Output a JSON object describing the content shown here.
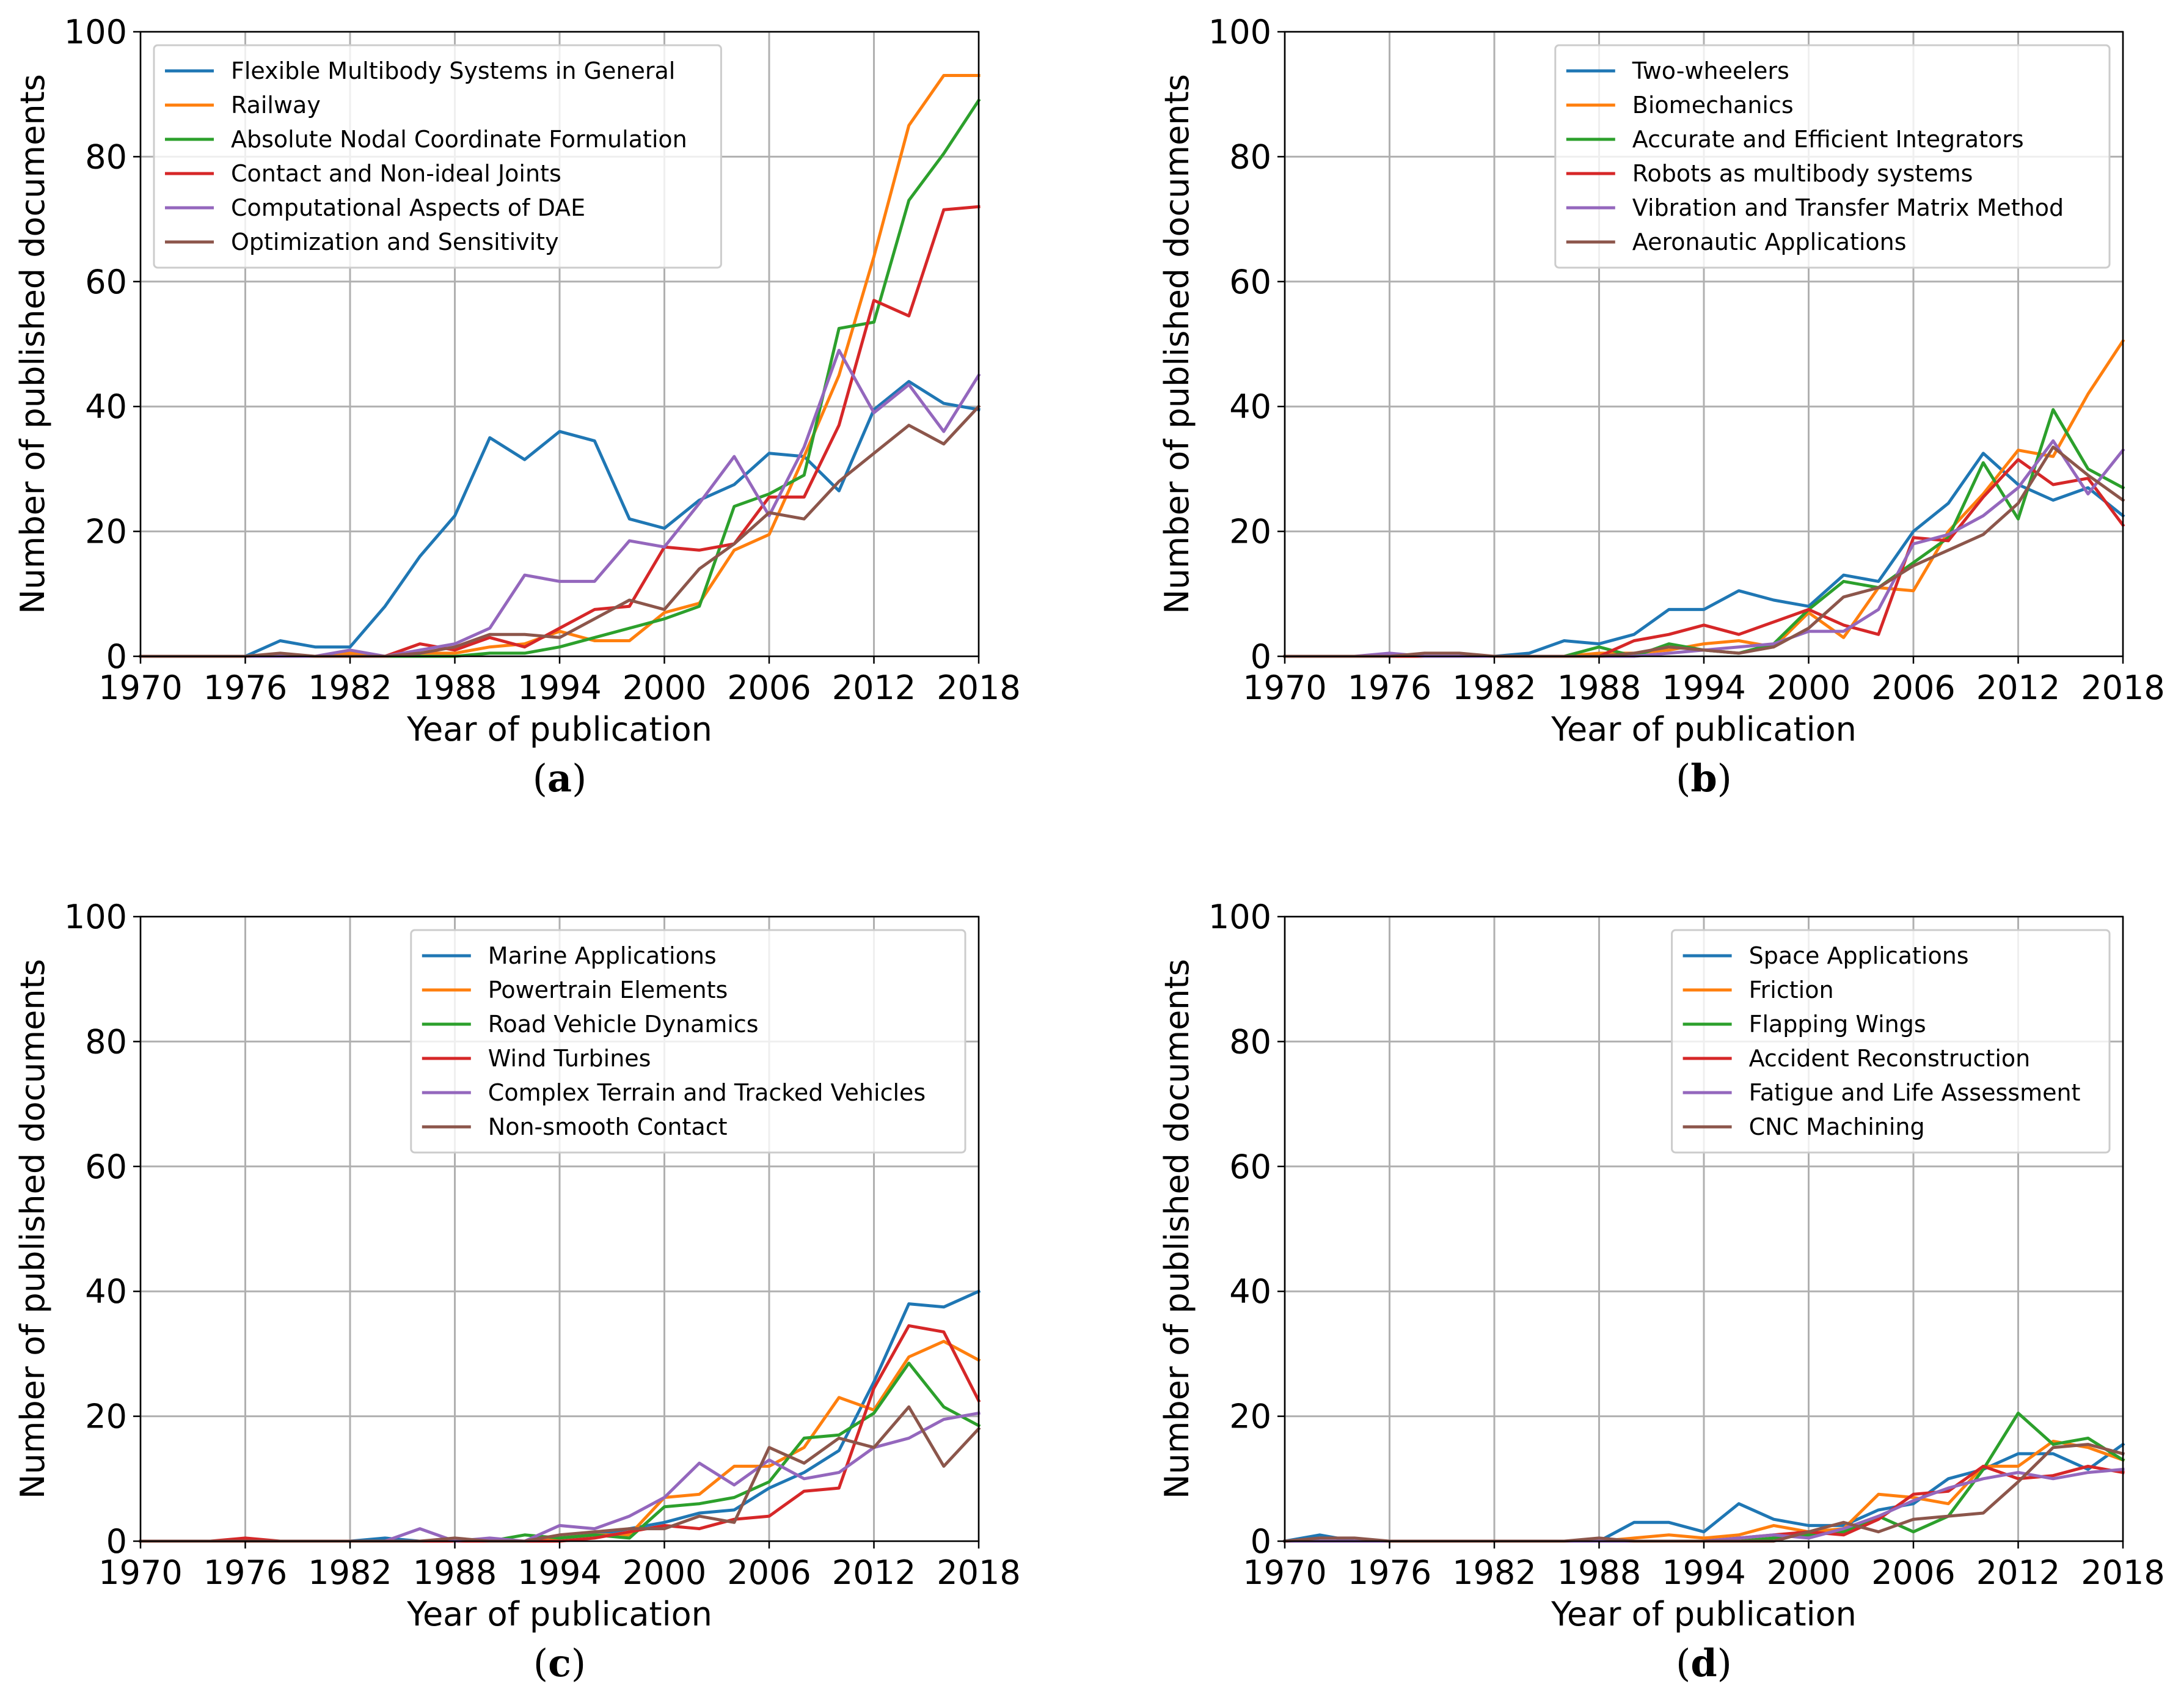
{
  "colors": {
    "c0": "#1f77b4",
    "c1": "#ff7f0e",
    "c2": "#2ca02c",
    "c3": "#d62728",
    "c4": "#9467bd",
    "c5": "#8c564b"
  },
  "chart_data": [
    {
      "type": "line",
      "caption": "(a)",
      "caption_letter": "a",
      "xlabel": "Year of publication",
      "ylabel": "Number of published documents",
      "xlim": [
        1970,
        2018
      ],
      "ylim": [
        0,
        100
      ],
      "xticks": [
        "1970",
        "1976",
        "1982",
        "1988",
        "1994",
        "2000",
        "2006",
        "2012",
        "2018"
      ],
      "yticks": [
        "0",
        "20",
        "40",
        "60",
        "80",
        "100"
      ],
      "grid": true,
      "legend_position": "top-left",
      "x": [
        1970,
        1972,
        1974,
        1976,
        1978,
        1980,
        1982,
        1984,
        1986,
        1988,
        1990,
        1992,
        1994,
        1996,
        1998,
        2000,
        2002,
        2004,
        2006,
        2008,
        2010,
        2012,
        2014,
        2016,
        2018
      ],
      "series": [
        {
          "name": "Flexible Multibody Systems in General",
          "color_key": "c0",
          "values": [
            0,
            0,
            0,
            0,
            2.5,
            1.5,
            1.5,
            8,
            16,
            22.5,
            35,
            31.5,
            36,
            34.5,
            22,
            20.5,
            25,
            27.5,
            32.5,
            32,
            26.5,
            39.5,
            44,
            40.5,
            39.5
          ]
        },
        {
          "name": "Railway",
          "color_key": "c1",
          "values": [
            0,
            0,
            0,
            0,
            0,
            0,
            0.5,
            0,
            0.5,
            0.5,
            1.5,
            2,
            4,
            2.5,
            2.5,
            7,
            8.5,
            17,
            19.5,
            32,
            45,
            64,
            85,
            93,
            93
          ]
        },
        {
          "name": "Absolute Nodal Coordinate Formulation",
          "color_key": "c2",
          "values": [
            0,
            0,
            0,
            0,
            0,
            0,
            0,
            0,
            0,
            0,
            0.5,
            0.5,
            1.5,
            3,
            4.5,
            6,
            8,
            24,
            26,
            29,
            52.5,
            53.5,
            73,
            80.5,
            89
          ]
        },
        {
          "name": "Contact and Non-ideal Joints",
          "color_key": "c3",
          "values": [
            0,
            0,
            0,
            0,
            0,
            0,
            0,
            0,
            2,
            1,
            3,
            1.5,
            4.5,
            7.5,
            8,
            17.5,
            17,
            18,
            25.5,
            25.5,
            37,
            57,
            54.5,
            71.5,
            72
          ]
        },
        {
          "name": "Computational Aspects of DAE",
          "color_key": "c4",
          "values": [
            0,
            0,
            0,
            0,
            0,
            0,
            1,
            0,
            1,
            2,
            4.5,
            13,
            12,
            12,
            18.5,
            17.5,
            24.5,
            32,
            22.5,
            33.5,
            49,
            39,
            43.5,
            36,
            45
          ]
        },
        {
          "name": "Optimization and Sensitivity",
          "color_key": "c5",
          "values": [
            0,
            0,
            0,
            0,
            0.5,
            0,
            0,
            0,
            0.5,
            1.5,
            3.5,
            3.5,
            3,
            6,
            9,
            7.5,
            14,
            18,
            23,
            22,
            28,
            32.5,
            37,
            34,
            40
          ]
        }
      ]
    },
    {
      "type": "line",
      "caption": "(b)",
      "caption_letter": "b",
      "xlabel": "Year of publication",
      "ylabel": "Number of published documents",
      "xlim": [
        1970,
        2018
      ],
      "ylim": [
        0,
        100
      ],
      "xticks": [
        "1970",
        "1976",
        "1982",
        "1988",
        "1994",
        "2000",
        "2006",
        "2012",
        "2018"
      ],
      "yticks": [
        "0",
        "20",
        "40",
        "60",
        "80",
        "100"
      ],
      "grid": true,
      "legend_position": "top-right",
      "x": [
        1970,
        1972,
        1974,
        1976,
        1978,
        1980,
        1982,
        1984,
        1986,
        1988,
        1990,
        1992,
        1994,
        1996,
        1998,
        2000,
        2002,
        2004,
        2006,
        2008,
        2010,
        2012,
        2014,
        2016,
        2018
      ],
      "series": [
        {
          "name": "Two-wheelers",
          "color_key": "c0",
          "values": [
            0,
            0,
            0,
            0,
            0,
            0,
            0,
            0.5,
            2.5,
            2,
            3.5,
            7.5,
            7.5,
            10.5,
            9,
            8,
            13,
            12,
            20,
            24.5,
            32.5,
            27.5,
            25,
            27,
            22.5
          ]
        },
        {
          "name": "Biomechanics",
          "color_key": "c1",
          "values": [
            0,
            0,
            0,
            0,
            0,
            0,
            0,
            0,
            0,
            0.5,
            0.5,
            1,
            2,
            2.5,
            1.5,
            7,
            3,
            11,
            10.5,
            20,
            26,
            33,
            32,
            42,
            50.5
          ]
        },
        {
          "name": "Accurate and Efficient Integrators",
          "color_key": "c2",
          "values": [
            0,
            0,
            0,
            0,
            0,
            0,
            0,
            0,
            0,
            1.5,
            0,
            2,
            1,
            0.5,
            2,
            7.5,
            12,
            11,
            15,
            19,
            31,
            22,
            39.5,
            30,
            27
          ]
        },
        {
          "name": "Robots as multibody systems",
          "color_key": "c3",
          "values": [
            0,
            0,
            0,
            0,
            0,
            0,
            0,
            0,
            0,
            0,
            2.5,
            3.5,
            5,
            3.5,
            5.5,
            7.5,
            5,
            3.5,
            19,
            18.5,
            25.5,
            31.5,
            27.5,
            28.5,
            21
          ]
        },
        {
          "name": "Vibration and Transfer Matrix Method",
          "color_key": "c4",
          "values": [
            0,
            0,
            0,
            0.5,
            0,
            0,
            0,
            0,
            0,
            0,
            0,
            0.5,
            1,
            1.5,
            2,
            4,
            4,
            7.5,
            18,
            19.5,
            22.5,
            27,
            34.5,
            26,
            33
          ]
        },
        {
          "name": "Aeronautic Applications",
          "color_key": "c5",
          "values": [
            0,
            0,
            0,
            0,
            0.5,
            0.5,
            0,
            0,
            0,
            0,
            0.5,
            1.5,
            1,
            0.5,
            1.5,
            4.5,
            9.5,
            11,
            14.5,
            17,
            19.5,
            24.5,
            33.5,
            29,
            25
          ]
        }
      ]
    },
    {
      "type": "line",
      "caption": "(c)",
      "caption_letter": "c",
      "xlabel": "Year of publication",
      "ylabel": "Number of published documents",
      "xlim": [
        1970,
        2018
      ],
      "ylim": [
        0,
        100
      ],
      "xticks": [
        "1970",
        "1976",
        "1982",
        "1988",
        "1994",
        "2000",
        "2006",
        "2012",
        "2018"
      ],
      "yticks": [
        "0",
        "20",
        "40",
        "60",
        "80",
        "100"
      ],
      "grid": true,
      "legend_position": "top-right",
      "x": [
        1970,
        1972,
        1974,
        1976,
        1978,
        1980,
        1982,
        1984,
        1986,
        1988,
        1990,
        1992,
        1994,
        1996,
        1998,
        2000,
        2002,
        2004,
        2006,
        2008,
        2010,
        2012,
        2014,
        2016,
        2018
      ],
      "series": [
        {
          "name": "Marine Applications",
          "color_key": "c0",
          "values": [
            0,
            0,
            0,
            0,
            0,
            0,
            0,
            0.5,
            0,
            0,
            0,
            0,
            0.5,
            1,
            2,
            3,
            4.5,
            5,
            8.5,
            11,
            14.5,
            25.5,
            38,
            37.5,
            40
          ]
        },
        {
          "name": "Powertrain Elements",
          "color_key": "c1",
          "values": [
            0,
            0,
            0,
            0,
            0,
            0,
            0,
            0,
            0,
            0,
            0,
            0,
            0.5,
            1,
            1,
            7,
            7.5,
            12,
            12,
            15,
            23,
            21,
            29.5,
            32,
            29
          ]
        },
        {
          "name": "Road Vehicle Dynamics",
          "color_key": "c2",
          "values": [
            0,
            0,
            0,
            0,
            0,
            0,
            0,
            0,
            0,
            0,
            0,
            1,
            0.5,
            1,
            0.5,
            5.5,
            6,
            7,
            9.5,
            16.5,
            17,
            20.5,
            28.5,
            21.5,
            18.5
          ]
        },
        {
          "name": "Wind Turbines",
          "color_key": "c3",
          "values": [
            0,
            0,
            0,
            0.5,
            0,
            0,
            0,
            0,
            0,
            0,
            0,
            0,
            0,
            0.5,
            1.5,
            2.5,
            2,
            3.5,
            4,
            8,
            8.5,
            24.5,
            34.5,
            33.5,
            22.5
          ]
        },
        {
          "name": "Complex Terrain and Tracked Vehicles",
          "color_key": "c4",
          "values": [
            0,
            0,
            0,
            0,
            0,
            0,
            0,
            0,
            2,
            0,
            0.5,
            0,
            2.5,
            2,
            4,
            7,
            12.5,
            9,
            13,
            10,
            11,
            15,
            16.5,
            19.5,
            20.5
          ]
        },
        {
          "name": "Non-smooth Contact",
          "color_key": "c5",
          "values": [
            0,
            0,
            0,
            0,
            0,
            0,
            0,
            0,
            0,
            0.5,
            0,
            0,
            1,
            1.5,
            2,
            2,
            4,
            3,
            15,
            12.5,
            16.5,
            15,
            21.5,
            12,
            18
          ]
        }
      ]
    },
    {
      "type": "line",
      "caption": "(d)",
      "caption_letter": "d",
      "xlabel": "Year of publication",
      "ylabel": "Number of published documents",
      "xlim": [
        1970,
        2018
      ],
      "ylim": [
        0,
        100
      ],
      "xticks": [
        "1970",
        "1976",
        "1982",
        "1988",
        "1994",
        "2000",
        "2006",
        "2012",
        "2018"
      ],
      "yticks": [
        "0",
        "20",
        "40",
        "60",
        "80",
        "100"
      ],
      "grid": true,
      "legend_position": "top-right",
      "x": [
        1970,
        1972,
        1974,
        1976,
        1978,
        1980,
        1982,
        1984,
        1986,
        1988,
        1990,
        1992,
        1994,
        1996,
        1998,
        2000,
        2002,
        2004,
        2006,
        2008,
        2010,
        2012,
        2014,
        2016,
        2018
      ],
      "series": [
        {
          "name": "Space Applications",
          "color_key": "c0",
          "values": [
            0,
            1,
            0,
            0,
            0,
            0,
            0,
            0,
            0,
            0,
            3,
            3,
            1.5,
            6,
            3.5,
            2.5,
            2.5,
            5,
            6,
            10,
            11.5,
            14,
            14,
            11.5,
            15.5
          ]
        },
        {
          "name": "Friction",
          "color_key": "c1",
          "values": [
            0,
            0,
            0,
            0,
            0,
            0,
            0,
            0,
            0,
            0,
            0.5,
            1,
            0.5,
            1,
            2.5,
            1.5,
            2,
            7.5,
            7,
            6,
            12,
            12,
            16,
            15,
            13
          ]
        },
        {
          "name": "Flapping Wings",
          "color_key": "c2",
          "values": [
            0,
            0,
            0,
            0,
            0,
            0,
            0,
            0,
            0,
            0,
            0,
            0,
            0,
            0,
            0.5,
            1,
            1.5,
            4,
            1.5,
            4,
            11.5,
            20.5,
            15.5,
            16.5,
            13
          ]
        },
        {
          "name": "Accident Reconstruction",
          "color_key": "c3",
          "values": [
            0,
            0,
            0,
            0,
            0,
            0,
            0,
            0,
            0,
            0,
            0,
            0,
            0,
            0.5,
            1,
            1.5,
            1,
            3.5,
            7.5,
            8,
            12,
            10,
            10.5,
            12,
            11
          ]
        },
        {
          "name": "Fatigue and Life Assessment",
          "color_key": "c4",
          "values": [
            0,
            0,
            0,
            0,
            0,
            0,
            0,
            0,
            0,
            0,
            0,
            0,
            0,
            0.5,
            1,
            0.5,
            2,
            4,
            6.5,
            8.5,
            10,
            11,
            10,
            11,
            11.5
          ]
        },
        {
          "name": "CNC Machining",
          "color_key": "c5",
          "values": [
            0,
            0.5,
            0.5,
            0,
            0,
            0,
            0,
            0,
            0,
            0.5,
            0,
            0,
            0,
            0,
            0,
            1.5,
            3,
            1.5,
            3.5,
            4,
            4.5,
            9.5,
            15,
            15.5,
            14
          ]
        }
      ]
    }
  ]
}
